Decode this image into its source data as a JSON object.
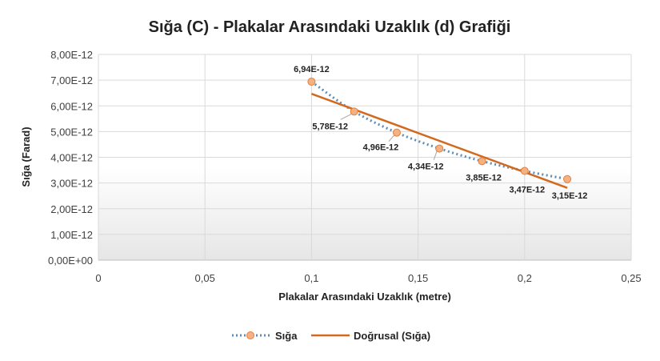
{
  "chart_data": {
    "type": "scatter",
    "title": "Sığa (C) - Plakalar Arasındaki Uzaklık (d) Grafiği",
    "xlabel": "Plakalar Arasındaki Uzaklık (metre)",
    "ylabel": "Sığa (Farad)",
    "xlim": [
      0,
      0.25
    ],
    "ylim": [
      0,
      8e-12
    ],
    "x_ticks": [
      0,
      0.05,
      0.1,
      0.15,
      0.2,
      0.25
    ],
    "x_tick_labels": [
      "0",
      "0,05",
      "0,1",
      "0,15",
      "0,2",
      "0,25"
    ],
    "y_ticks": [
      0,
      1e-12,
      2e-12,
      3e-12,
      4e-12,
      5e-12,
      6e-12,
      7e-12,
      8e-12
    ],
    "y_tick_labels": [
      "0,00E+00",
      "1,00E-12",
      "2,00E-12",
      "3,00E-12",
      "4,00E-12",
      "5,00E-12",
      "6,00E-12",
      "7,00E-12",
      "8,00E-12"
    ],
    "grid": true,
    "legend_position": "bottom",
    "series": [
      {
        "name": "Sığa",
        "style": "smoothed dotted line with circle markers",
        "line_color": "#5b8db8",
        "marker_fill": "#f4b183",
        "marker_edge": "#ed7d31",
        "x": [
          0.1,
          0.12,
          0.14,
          0.16,
          0.18,
          0.2,
          0.22
        ],
        "y": [
          6.94e-12,
          5.78e-12,
          4.96e-12,
          4.34e-12,
          3.85e-12,
          3.47e-12,
          3.15e-12
        ],
        "data_labels": [
          "6,94E-12",
          "5,78E-12",
          "4,96E-12",
          "4,34E-12",
          "3,85E-12",
          "3,47E-12",
          "3,15E-12"
        ]
      },
      {
        "name": "Doğrusal (Sığa)",
        "style": "linear trendline",
        "line_color": "#d2691e",
        "x": [
          0.1,
          0.22
        ],
        "y": [
          6.47e-12,
          2.81e-12
        ]
      }
    ]
  }
}
